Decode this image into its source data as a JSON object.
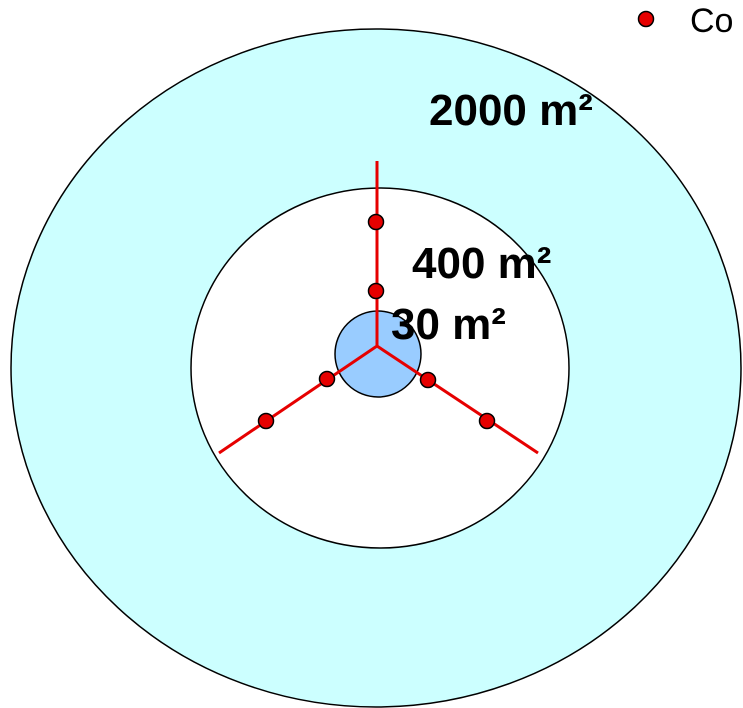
{
  "colors": {
    "outer_zone": "#ccffff",
    "inner_zone": "#ffffff",
    "core_zone": "#99ccff",
    "transect": "#e60000",
    "point": "#e60000",
    "outline": "#000000"
  },
  "zones": {
    "outer_label": "2000 m²",
    "middle_label": "400 m²",
    "core_label": "30 m²"
  },
  "legend": {
    "label": "Co",
    "marker_icon": "red-dot-icon"
  }
}
